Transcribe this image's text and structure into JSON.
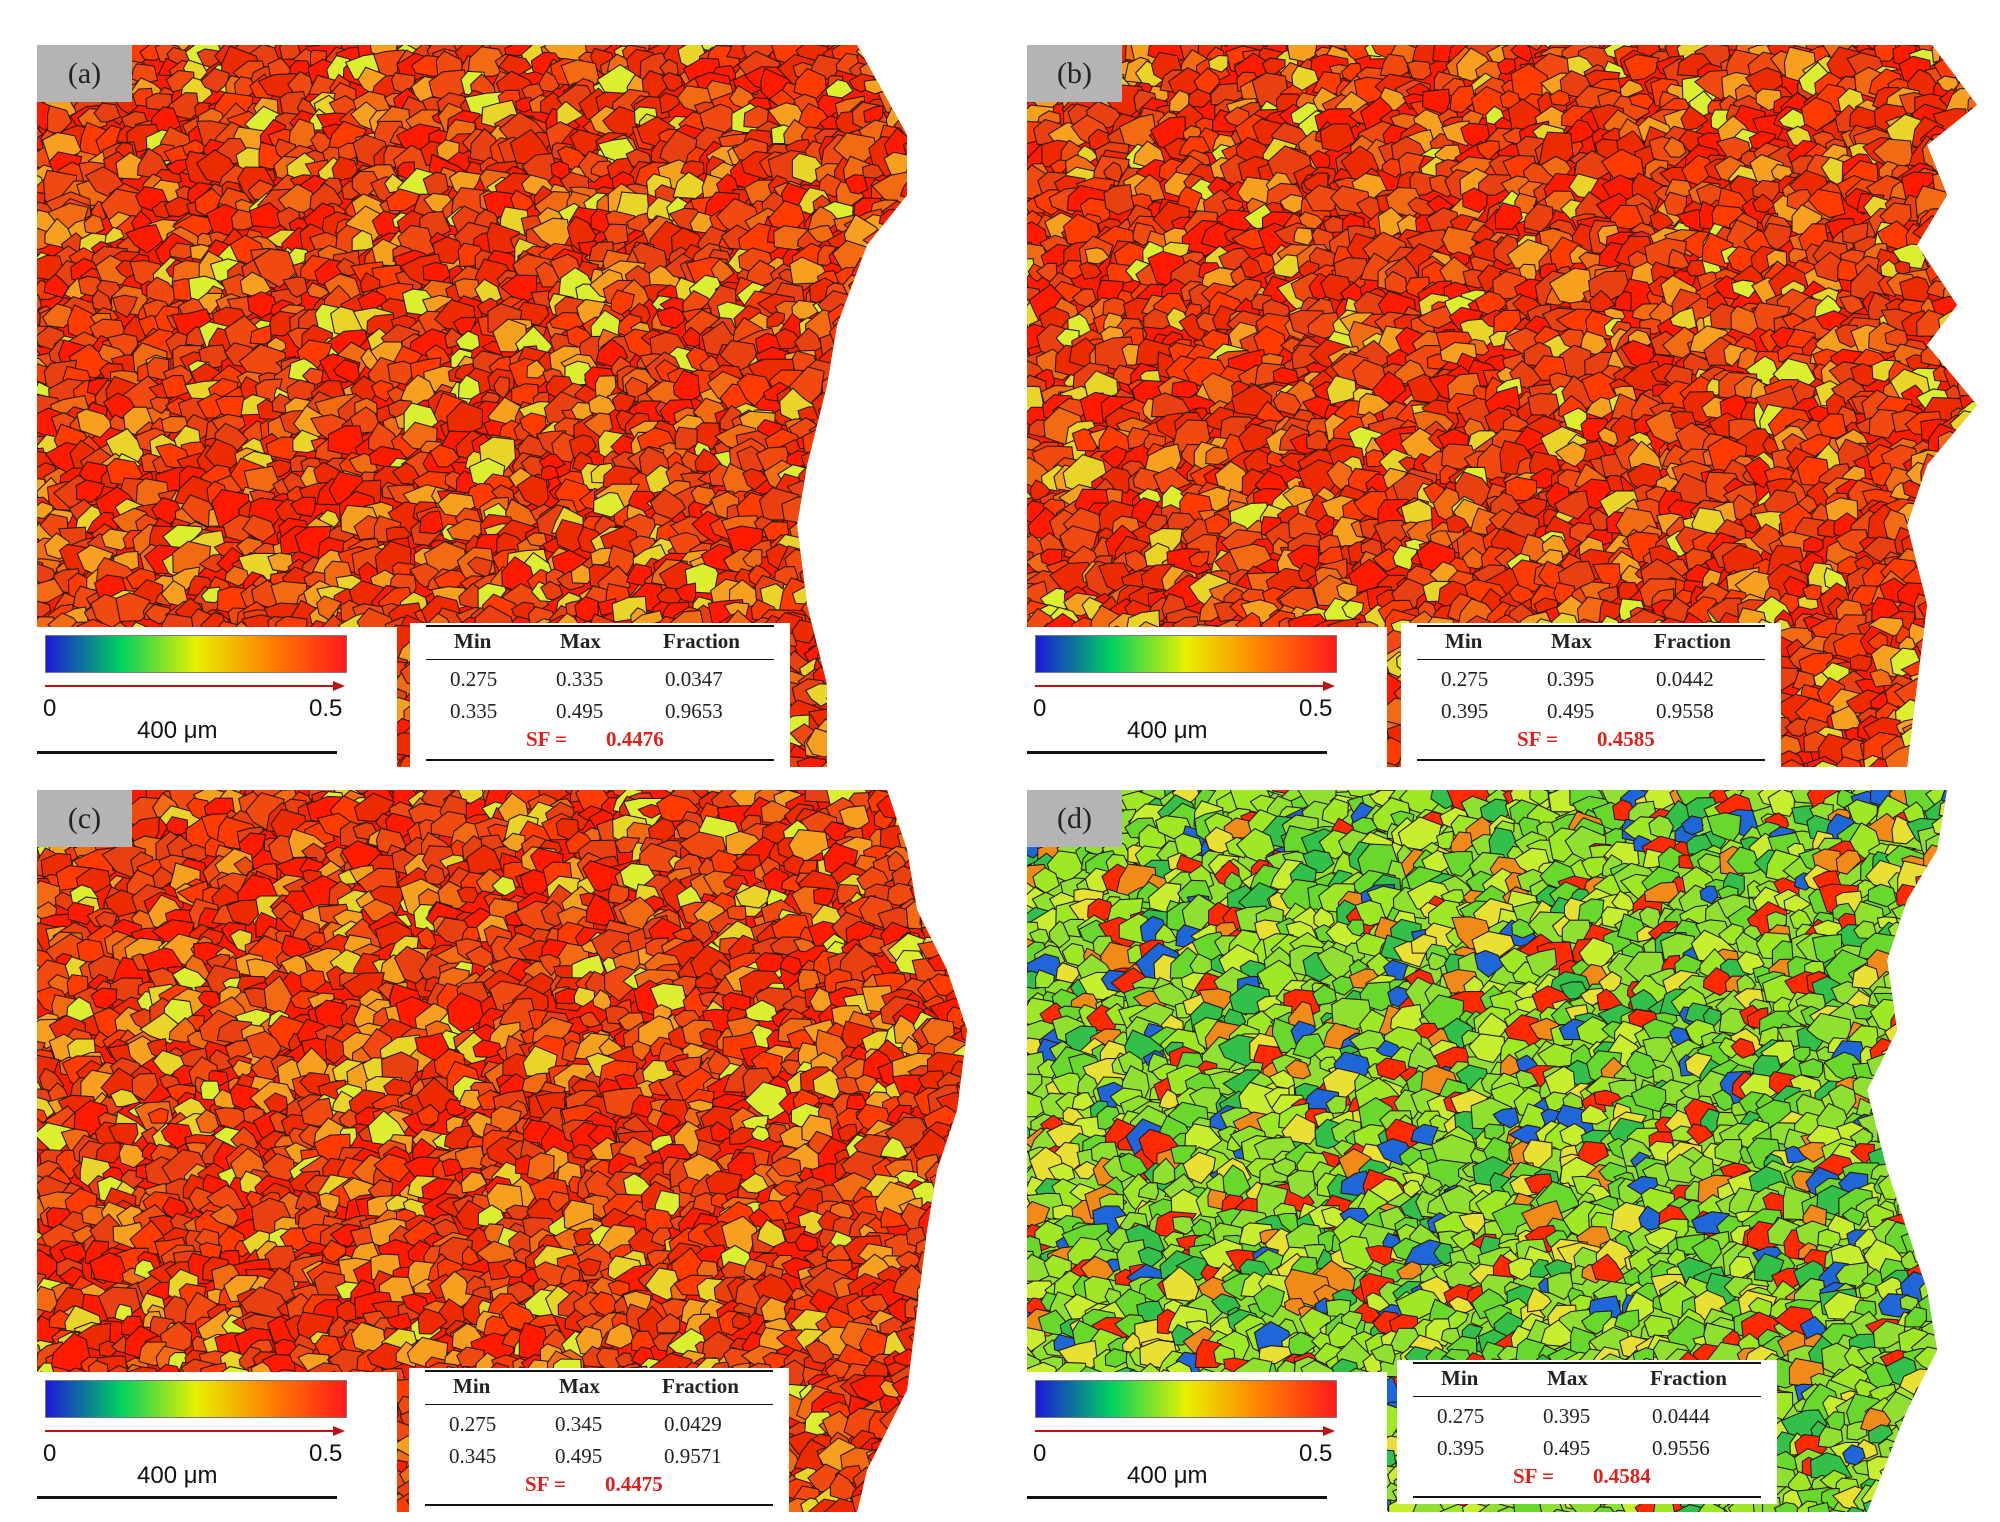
{
  "panels": [
    {
      "label": "(a)",
      "table": {
        "headers": [
          "Min",
          "Max",
          "Fraction"
        ],
        "rows": [
          [
            "0.275",
            "0.335",
            "0.0347"
          ],
          [
            "0.335",
            "0.495",
            "0.9653"
          ]
        ],
        "sf_label": "SF =",
        "sf_value": "0.4476"
      },
      "colorbar": {
        "min": "0",
        "max": "0.5"
      },
      "scale_bar": "400 μm",
      "palette": "red"
    },
    {
      "label": "(b)",
      "table": {
        "headers": [
          "Min",
          "Max",
          "Fraction"
        ],
        "rows": [
          [
            "0.275",
            "0.395",
            "0.0442"
          ],
          [
            "0.395",
            "0.495",
            "0.9558"
          ]
        ],
        "sf_label": "SF =",
        "sf_value": "0.4585"
      },
      "colorbar": {
        "min": "0",
        "max": "0.5"
      },
      "scale_bar": "400 μm",
      "palette": "red"
    },
    {
      "label": "(c)",
      "table": {
        "headers": [
          "Min",
          "Max",
          "Fraction"
        ],
        "rows": [
          [
            "0.275",
            "0.345",
            "0.0429"
          ],
          [
            "0.345",
            "0.495",
            "0.9571"
          ]
        ],
        "sf_label": "SF =",
        "sf_value": "0.4475"
      },
      "colorbar": {
        "min": "0",
        "max": "0.5"
      },
      "scale_bar": "400 μm",
      "palette": "red"
    },
    {
      "label": "(d)",
      "table": {
        "headers": [
          "Min",
          "Max",
          "Fraction"
        ],
        "rows": [
          [
            "0.275",
            "0.395",
            "0.0444"
          ],
          [
            "0.395",
            "0.495",
            "0.9556"
          ]
        ],
        "sf_label": "SF =",
        "sf_value": "0.4584"
      },
      "colorbar": {
        "min": "0",
        "max": "0.5"
      },
      "scale_bar": "400 μm",
      "palette": "green"
    }
  ],
  "colors": {
    "red_palette": [
      "#ff1a00",
      "#ee2a00",
      "#f04a10",
      "#ff3b00",
      "#e84010",
      "#f26a12",
      "#f7a020",
      "#e9d52a",
      "#dcee30"
    ],
    "green_palette": [
      "#8fe030",
      "#9ee825",
      "#68d82c",
      "#c8ee30",
      "#33c04a",
      "#1f66d8",
      "#ff2a00",
      "#f08a18",
      "#e8e033"
    ],
    "sf_text": "#e0201a",
    "colorbar_stops": [
      "#1a1ad8",
      "#00d060",
      "#e8f000",
      "#ff8000",
      "#ff1a1a"
    ]
  }
}
